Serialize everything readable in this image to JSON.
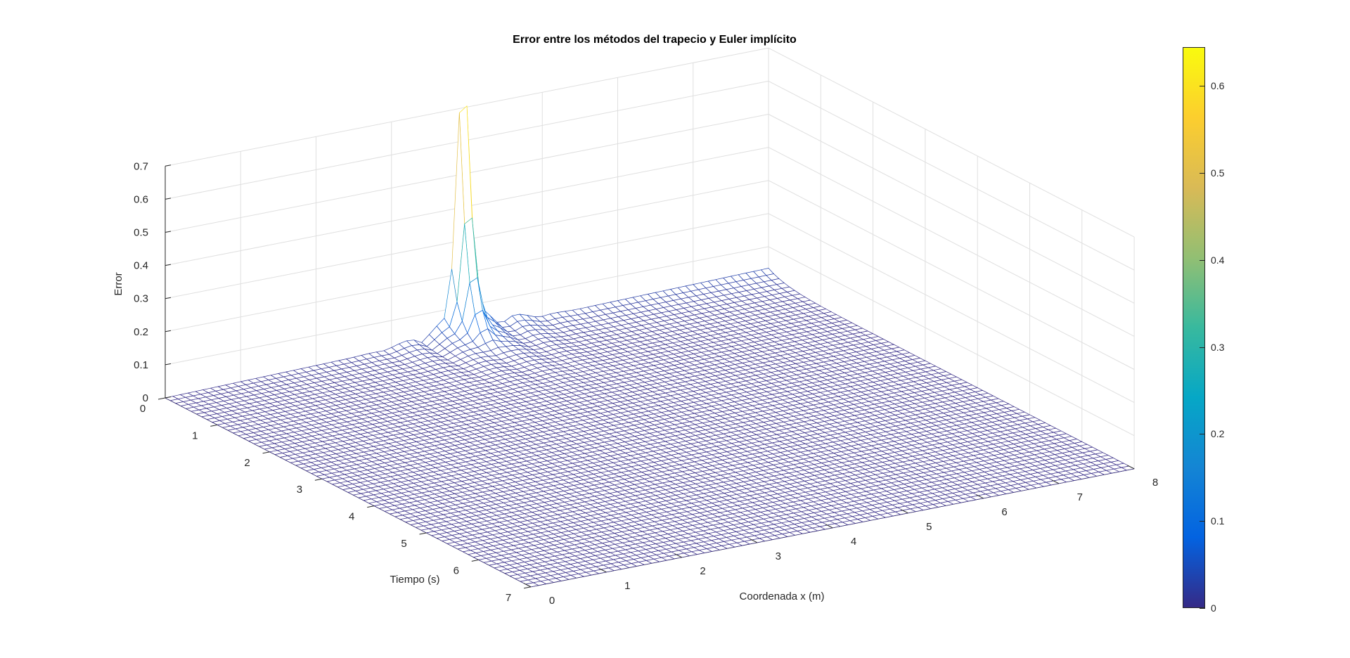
{
  "chart_data": {
    "type": "surface",
    "title": "Error entre los métodos del trapecio y Euler implícito",
    "xlabel": "Coordenada x (m)",
    "ylabel": "Tiempo (s)",
    "zlabel": "Error",
    "xlim": [
      0,
      8
    ],
    "ylim": [
      0,
      7
    ],
    "zlim": [
      0,
      0.7
    ],
    "xticks": [
      "0",
      "1",
      "2",
      "3",
      "4",
      "5",
      "6",
      "7",
      "8"
    ],
    "yticks": [
      "0",
      "1",
      "2",
      "3",
      "4",
      "5",
      "6",
      "7"
    ],
    "zticks": [
      "0",
      "0.1",
      "0.2",
      "0.3",
      "0.4",
      "0.5",
      "0.6",
      "0.7"
    ],
    "grid": true,
    "grid_step": {
      "x": 0.1,
      "t": 0.1
    },
    "peak": {
      "x": 3.95,
      "t": 0,
      "z": 0.66
    },
    "colorbar": {
      "position": "right",
      "range": [
        0,
        0.66
      ],
      "ticks": [
        "0",
        "0.1",
        "0.2",
        "0.3",
        "0.4",
        "0.5",
        "0.6"
      ],
      "colormap": "parula"
    }
  }
}
